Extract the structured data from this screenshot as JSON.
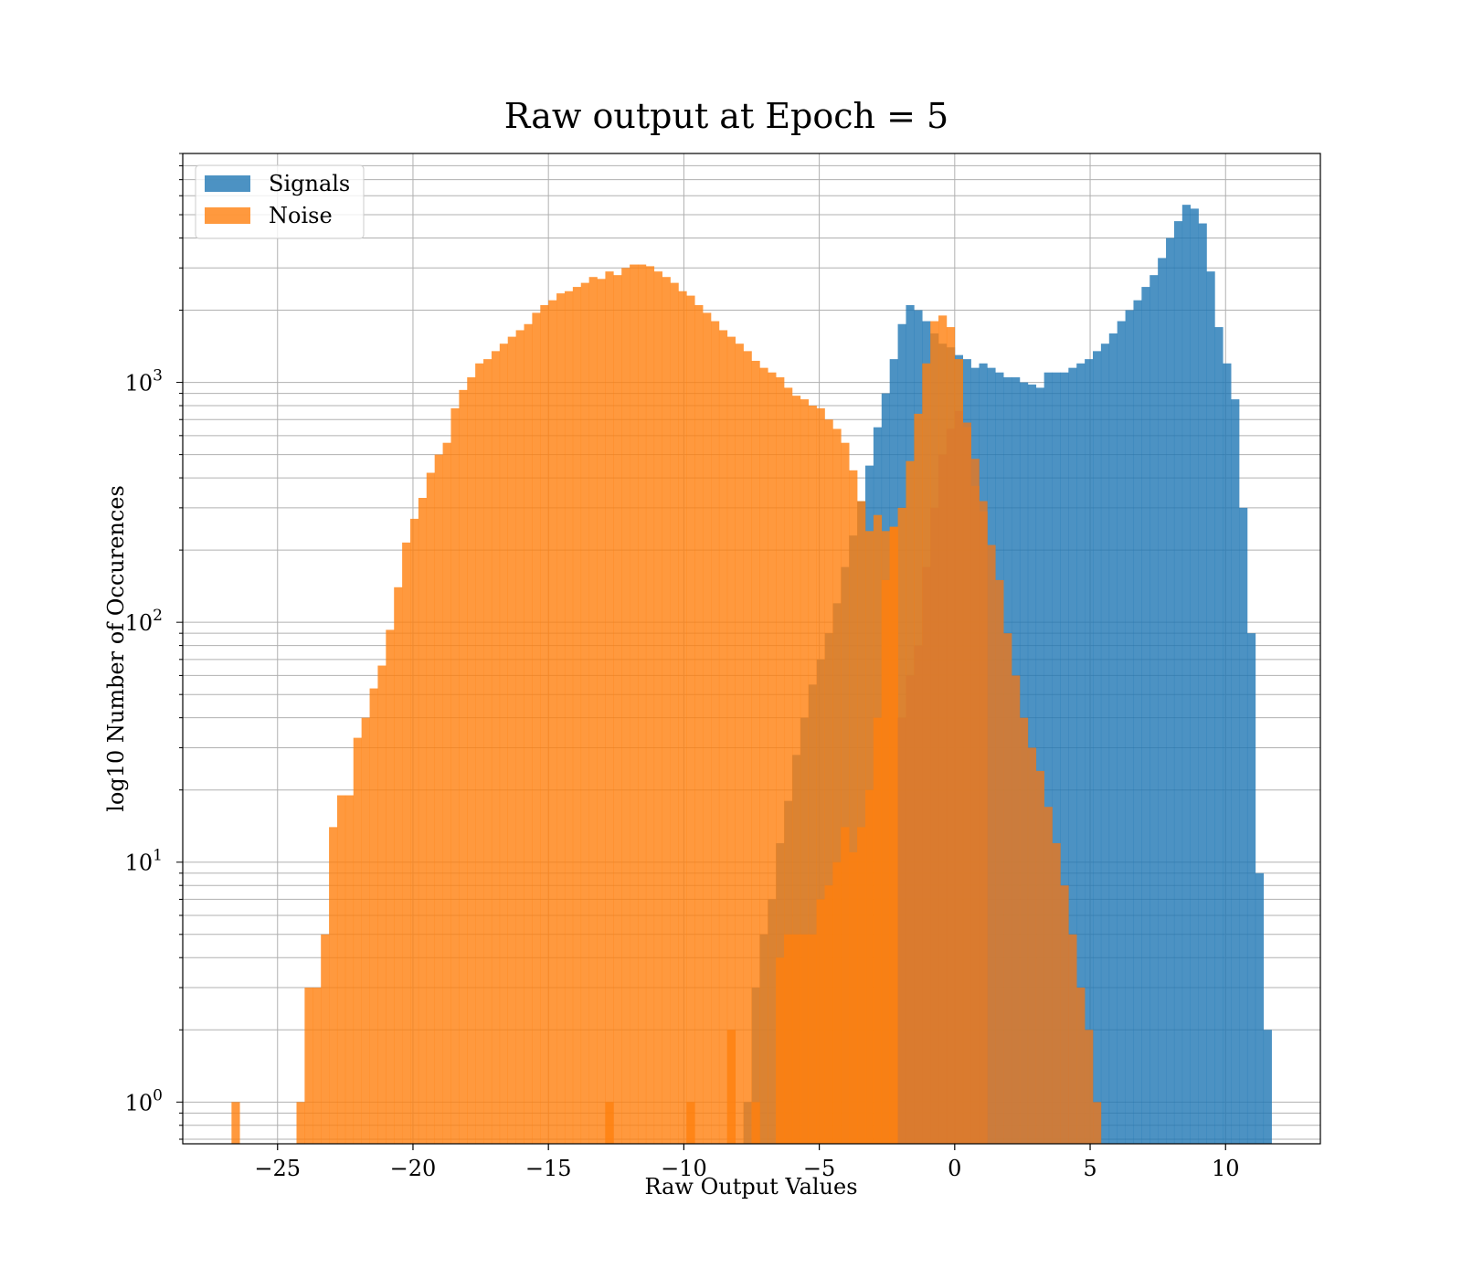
{
  "chart_data": {
    "type": "histogram",
    "title": "Raw output at Epoch = 5",
    "xlabel": "Raw Output Values",
    "ylabel": "log10 Number of Occurences",
    "xlim": [
      -28.5,
      13.5
    ],
    "ylim": [
      0.67,
      9000
    ],
    "yscale": "log",
    "grid": true,
    "legend_position": "top-left",
    "x_ticks": [
      -25,
      -20,
      -15,
      -10,
      -5,
      0,
      5,
      10
    ],
    "x_tick_labels": [
      "−25",
      "−20",
      "−15",
      "−10",
      "−5",
      "0",
      "5",
      "10"
    ],
    "y_ticks": [
      {
        "value": 1,
        "base": "10",
        "exp": "0"
      },
      {
        "value": 10,
        "base": "10",
        "exp": "1"
      },
      {
        "value": 100,
        "base": "10",
        "exp": "2"
      },
      {
        "value": 1000,
        "base": "10",
        "exp": "3"
      }
    ],
    "series": [
      {
        "name": "Signals",
        "color": "#1f77b4",
        "opacity": 0.8,
        "bin_start": -7.8,
        "bin_width": 0.3,
        "counts": [
          1,
          3,
          5,
          7,
          12,
          18,
          28,
          40,
          55,
          70,
          90,
          120,
          170,
          230,
          320,
          450,
          650,
          900,
          1250,
          1750,
          2100,
          2000,
          1800,
          1600,
          1450,
          1400,
          1300,
          1250,
          1150,
          1200,
          1150,
          1100,
          1050,
          1050,
          1000,
          980,
          950,
          1100,
          1100,
          1100,
          1150,
          1200,
          1250,
          1350,
          1450,
          1600,
          1800,
          2000,
          2200,
          2500,
          2800,
          3300,
          4000,
          4700,
          5500,
          5300,
          4600,
          2900,
          1700,
          1200,
          850,
          300,
          90,
          9,
          2
        ]
      },
      {
        "name": "Noise",
        "color": "#ff7f0e",
        "opacity": 0.8,
        "bin_start": -26.7,
        "bin_width": 0.3,
        "counts": [
          1,
          0,
          0,
          0,
          0,
          0,
          0,
          0,
          1,
          3,
          3,
          5,
          14,
          19,
          19,
          33,
          40,
          53,
          66,
          93,
          140,
          215,
          270,
          330,
          420,
          500,
          560,
          780,
          930,
          1050,
          1200,
          1250,
          1350,
          1450,
          1550,
          1650,
          1750,
          1950,
          2100,
          2200,
          2350,
          2400,
          2500,
          2600,
          2750,
          2700,
          2900,
          2800,
          3000,
          3100,
          3100,
          3050,
          2900,
          2750,
          2600,
          2400,
          2300,
          2100,
          1950,
          1800,
          1650,
          1550,
          1450,
          1350,
          1230,
          1150,
          1100,
          1050,
          950,
          880,
          850,
          800,
          780,
          700,
          640,
          560,
          430,
          320,
          240,
          280,
          240,
          250,
          300,
          470,
          740,
          1200,
          1800,
          1900,
          1700,
          1250,
          650,
          370,
          290
        ]
      },
      {
        "name": "",
        "color": "#ff7f0e",
        "opacity": 0.8,
        "bin_start": -12.9,
        "bin_width": 0.3,
        "counts": [
          1,
          0,
          0,
          0,
          0,
          0,
          0,
          0,
          0,
          0,
          1,
          0,
          0,
          0,
          0,
          2,
          0,
          0,
          1,
          0,
          0,
          4,
          5,
          5,
          5,
          5,
          7,
          8,
          10,
          14,
          11,
          14,
          20,
          40,
          150,
          250
        ]
      },
      {
        "name": "",
        "color": "#d97a2f",
        "opacity": 0.9,
        "bin_start": -3.6,
        "bin_width": 0.3,
        "counts": [
          0,
          0,
          0,
          0,
          0,
          40,
          60,
          80,
          170,
          300,
          500,
          640,
          760,
          680,
          480,
          320,
          210,
          150,
          90,
          60,
          40,
          30,
          24,
          17,
          12,
          8,
          5,
          3,
          2,
          1
        ]
      }
    ]
  }
}
